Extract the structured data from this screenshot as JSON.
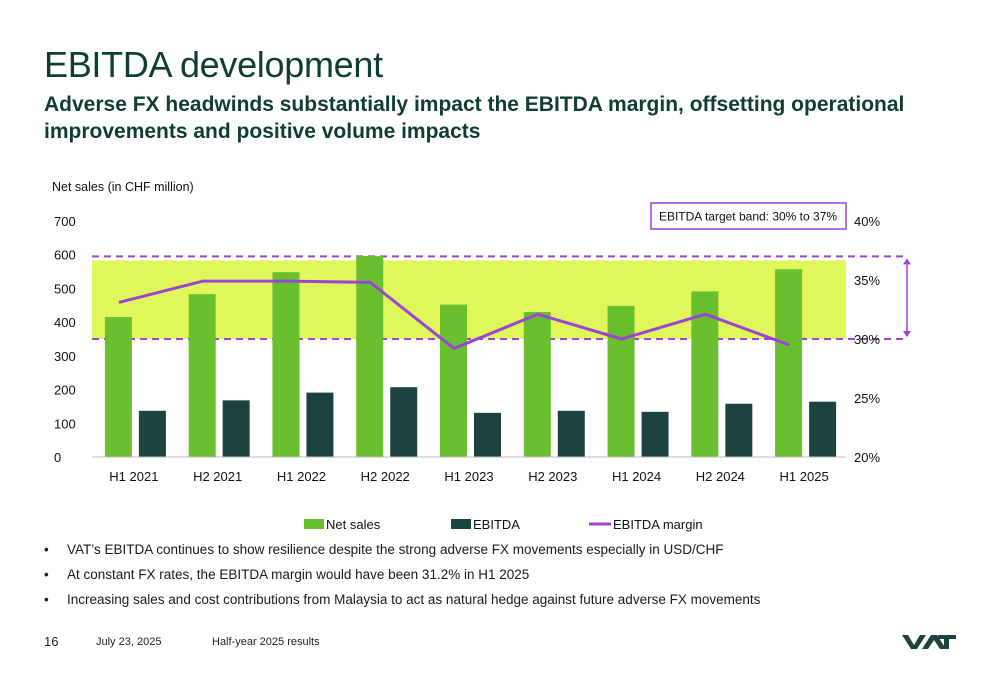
{
  "slide": {
    "title": "EBITDA development",
    "subtitle": "Adverse FX headwinds substantially impact the EBITDA margin, offsetting operational improvements and positive volume impacts"
  },
  "chart_data": {
    "type": "bar",
    "ylabel": "Net sales (in CHF million)",
    "categories": [
      "H1 2021",
      "H2 2021",
      "H1 2022",
      "H2 2022",
      "H1 2023",
      "H2 2023",
      "H1 2024",
      "H2 2024",
      "H1 2025"
    ],
    "ylim": [
      0,
      700
    ],
    "yticks": [
      0,
      100,
      200,
      300,
      400,
      500,
      600,
      700
    ],
    "y2lim": [
      20,
      40
    ],
    "y2ticks": [
      "20%",
      "25%",
      "30%",
      "35%",
      "40%"
    ],
    "series": [
      {
        "name": "Net sales",
        "type": "bar",
        "axis": "left",
        "color": "#6abf2e",
        "values": [
          415,
          483,
          548,
          596,
          452,
          430,
          448,
          491,
          557
        ]
      },
      {
        "name": "EBITDA",
        "type": "bar",
        "axis": "left",
        "color": "#1b4440",
        "values": [
          137,
          168,
          191,
          207,
          131,
          137,
          134,
          158,
          164
        ]
      },
      {
        "name": "EBITDA margin",
        "type": "line",
        "axis": "right",
        "color": "#9b44d6",
        "values": [
          33.1,
          34.9,
          34.9,
          34.8,
          29.2,
          32.1,
          30.0,
          32.1,
          29.5
        ]
      }
    ],
    "target_band": {
      "label": "EBITDA target band: 30% to 37%",
      "from": 30,
      "to": 37,
      "color": "#dff75a",
      "line_color": "#9b44d6"
    },
    "legend": {
      "position": "bottom"
    }
  },
  "bullets": [
    "VAT’s EBITDA continues to show resilience despite the strong adverse FX movements especially in USD/CHF",
    "At constant FX rates, the EBITDA margin would have been 31.2% in H1 2025",
    "Increasing sales and cost contributions from Malaysia to act as natural hedge against future adverse FX movements"
  ],
  "footer": {
    "page": "16",
    "date": "July 23, 2025",
    "label": "Half-year 2025 results",
    "brand": "VAT"
  },
  "colors": {
    "title": "#0f3d33",
    "accent": "#9b44d6",
    "band": "#dff75a"
  }
}
